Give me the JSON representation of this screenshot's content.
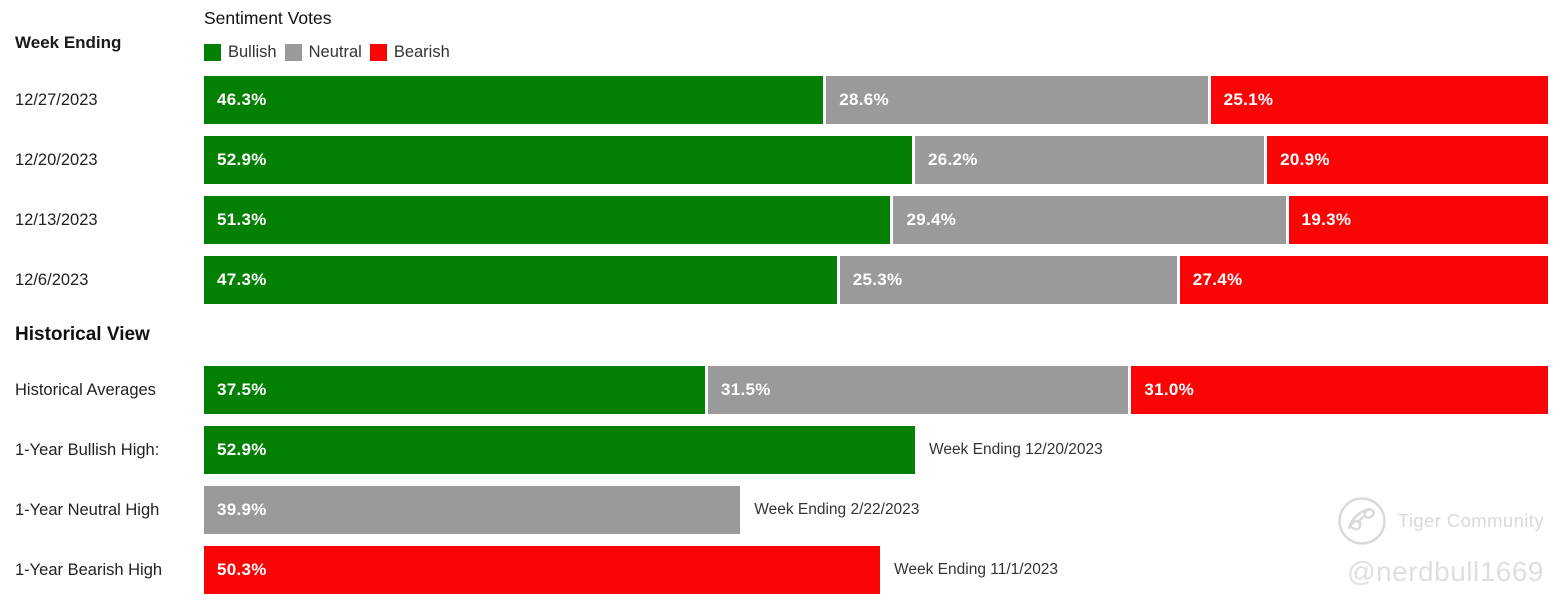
{
  "labels": {
    "week_ending": "Week Ending",
    "historical_view": "Historical View"
  },
  "chart_data": {
    "type": "bar",
    "variant": "horizontal-stacked",
    "title": "Sentiment Votes",
    "x_range_percent": [
      0,
      100
    ],
    "grid": false,
    "legend_position": "top",
    "legend": [
      {
        "label": "Bullish",
        "color": "#048104"
      },
      {
        "label": "Neutral",
        "color": "#9a9a9a"
      },
      {
        "label": "Bearish",
        "color": "#fa0505"
      }
    ],
    "weekly_rows": [
      {
        "week": "12/27/2023",
        "segments": [
          {
            "type": "Bullish",
            "value": 46.3,
            "display": "46.3%"
          },
          {
            "type": "Neutral",
            "value": 28.6,
            "display": "28.6%"
          },
          {
            "type": "Bearish",
            "value": 25.1,
            "display": "25.1%"
          }
        ]
      },
      {
        "week": "12/20/2023",
        "segments": [
          {
            "type": "Bullish",
            "value": 52.9,
            "display": "52.9%"
          },
          {
            "type": "Neutral",
            "value": 26.2,
            "display": "26.2%"
          },
          {
            "type": "Bearish",
            "value": 20.9,
            "display": "20.9%"
          }
        ]
      },
      {
        "week": "12/13/2023",
        "segments": [
          {
            "type": "Bullish",
            "value": 51.3,
            "display": "51.3%"
          },
          {
            "type": "Neutral",
            "value": 29.4,
            "display": "29.4%"
          },
          {
            "type": "Bearish",
            "value": 19.3,
            "display": "19.3%"
          }
        ]
      },
      {
        "week": "12/6/2023",
        "segments": [
          {
            "type": "Bullish",
            "value": 47.3,
            "display": "47.3%"
          },
          {
            "type": "Neutral",
            "value": 25.3,
            "display": "25.3%"
          },
          {
            "type": "Bearish",
            "value": 27.4,
            "display": "27.4%"
          }
        ]
      }
    ],
    "historical_rows": [
      {
        "label": "Historical Averages",
        "segments": [
          {
            "type": "Bullish",
            "value": 37.5,
            "display": "37.5%"
          },
          {
            "type": "Neutral",
            "value": 31.5,
            "display": "31.5%"
          },
          {
            "type": "Bearish",
            "value": 31.0,
            "display": "31.0%"
          }
        ],
        "annotation": ""
      },
      {
        "label": "1-Year Bullish High:",
        "segments": [
          {
            "type": "Bullish",
            "value": 52.9,
            "display": "52.9%"
          }
        ],
        "annotation": "Week Ending 12/20/2023"
      },
      {
        "label": "1-Year Neutral High",
        "segments": [
          {
            "type": "Neutral",
            "value": 39.9,
            "display": "39.9%"
          }
        ],
        "annotation": "Week Ending 2/22/2023"
      },
      {
        "label": "1-Year Bearish High",
        "segments": [
          {
            "type": "Bearish",
            "value": 50.3,
            "display": "50.3%"
          }
        ],
        "annotation": "Week Ending 11/1/2023"
      }
    ]
  },
  "watermark": {
    "brand": "Tiger Community",
    "handle": "@nerdbull1669",
    "color": "#d9d9d9"
  }
}
